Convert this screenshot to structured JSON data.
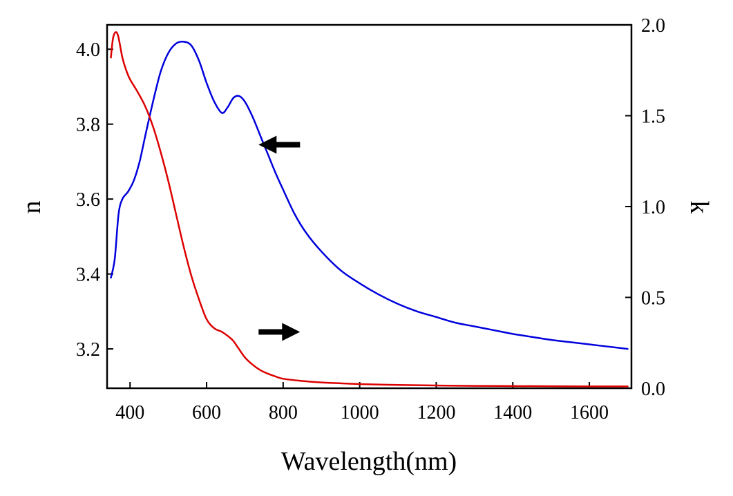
{
  "chart_data": {
    "type": "line",
    "title": "",
    "xlabel": "Wavelength(nm)",
    "ylabel_left": "n",
    "ylabel_right": "k",
    "xlim": [
      340,
      1710
    ],
    "ylim_left": [
      3.095,
      4.065
    ],
    "ylim_right": [
      0.0,
      2.0
    ],
    "x_ticks": [
      400,
      600,
      800,
      1000,
      1200,
      1400,
      1600
    ],
    "x_tick_labels": [
      "400",
      "600",
      "800",
      "1000",
      "1200",
      "1400",
      "1600"
    ],
    "y_left_ticks": [
      3.2,
      3.4,
      3.6,
      3.8,
      4.0
    ],
    "y_left_tick_labels": [
      "3.2",
      "3.4",
      "3.6",
      "3.8",
      "4.0"
    ],
    "y_right_ticks": [
      0.0,
      0.5,
      1.0,
      1.5,
      2.0
    ],
    "y_right_tick_labels": [
      "0.0",
      "0.5",
      "1.0",
      "1.5",
      "2.0"
    ],
    "grid": false,
    "legend": "none",
    "series": [
      {
        "axis": "left",
        "color": "#0000dd",
        "x": [
          350,
          360,
          370,
          380,
          395,
          410,
          425,
          440,
          460,
          480,
          500,
          520,
          540,
          560,
          580,
          600,
          620,
          640,
          655,
          670,
          685,
          700,
          720,
          740,
          760,
          780,
          800,
          830,
          860,
          900,
          950,
          1000,
          1050,
          1100,
          1150,
          1200,
          1250,
          1300,
          1350,
          1400,
          1450,
          1500,
          1550,
          1600,
          1650,
          1700
        ],
        "y": [
          3.39,
          3.44,
          3.56,
          3.6,
          3.62,
          3.65,
          3.7,
          3.77,
          3.86,
          3.94,
          3.99,
          4.015,
          4.02,
          4.01,
          3.97,
          3.91,
          3.86,
          3.83,
          3.845,
          3.87,
          3.875,
          3.86,
          3.82,
          3.77,
          3.72,
          3.67,
          3.625,
          3.56,
          3.51,
          3.46,
          3.41,
          3.375,
          3.345,
          3.32,
          3.3,
          3.285,
          3.27,
          3.26,
          3.25,
          3.24,
          3.232,
          3.224,
          3.218,
          3.212,
          3.206,
          3.2
        ]
      },
      {
        "axis": "right",
        "color": "#dd0000",
        "x": [
          350,
          355,
          360,
          365,
          370,
          380,
          390,
          400,
          420,
          440,
          460,
          480,
          500,
          520,
          540,
          560,
          580,
          600,
          620,
          640,
          660,
          670,
          680,
          700,
          720,
          740,
          760,
          780,
          800,
          850,
          900,
          950,
          1000,
          1100,
          1200,
          1300,
          1400,
          1500,
          1600,
          1700
        ],
        "y": [
          1.82,
          1.92,
          1.955,
          1.958,
          1.93,
          1.82,
          1.75,
          1.7,
          1.63,
          1.55,
          1.44,
          1.3,
          1.14,
          0.96,
          0.78,
          0.62,
          0.49,
          0.38,
          0.33,
          0.31,
          0.28,
          0.26,
          0.23,
          0.17,
          0.13,
          0.1,
          0.08,
          0.065,
          0.052,
          0.04,
          0.032,
          0.027,
          0.023,
          0.018,
          0.015,
          0.013,
          0.012,
          0.011,
          0.01,
          0.01
        ]
      }
    ],
    "annotations": [
      {
        "shape": "arrow",
        "direction": "left",
        "points_to_axis": "left",
        "x": 790,
        "y": 3.745
      },
      {
        "shape": "arrow",
        "direction": "right",
        "points_to_axis": "right",
        "x": 790,
        "y": 0.31
      }
    ]
  }
}
